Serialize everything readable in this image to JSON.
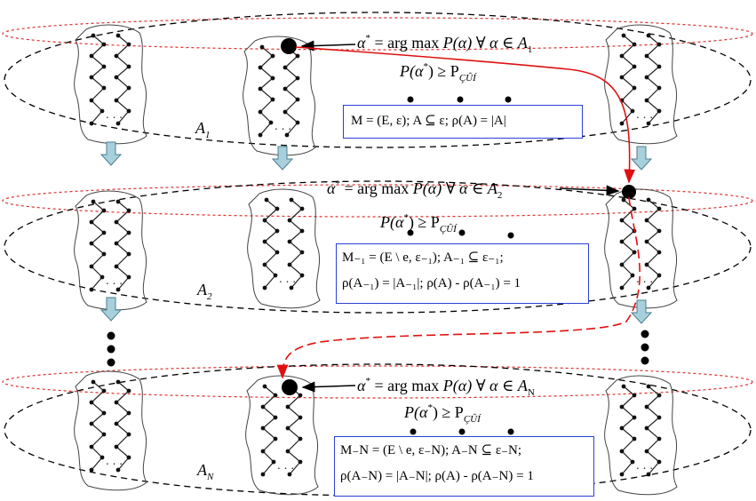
{
  "levels": [
    {
      "label": "A",
      "label_sub": "1",
      "argmax": {
        "lhs": "α",
        "sup": "*",
        "mid": " = arg max ",
        "fn": "P(α) ∀ α ∈ A",
        "sub": "1"
      },
      "threshold": {
        "lhs": "P(α",
        "sup": "*",
        "rest": ") ≥ P",
        "sub": "ÇÛÍ"
      },
      "box_lines": [
        "M = (E, ε); A ⊆ ε; ρ(A) = |A|"
      ]
    },
    {
      "label": "A",
      "label_sub": "2",
      "argmax": {
        "lhs": "α",
        "sup": "*",
        "mid": " = arg max ",
        "fn": "P(α) ∀ α ∈ A",
        "sub": "2"
      },
      "threshold": {
        "lhs": "P(α",
        "sup": "*",
        "rest": ") ≥ P",
        "sub": "ÇÛÍ"
      },
      "box_lines": [
        "M₋₁ = (E \\ e, ε₋₁); A₋₁ ⊆ ε₋₁;",
        "ρ(A₋₁) = |A₋₁|; ρ(A) - ρ(A₋₁) = 1"
      ]
    },
    {
      "label": "A",
      "label_sub": "N",
      "argmax": {
        "lhs": "α",
        "sup": "*",
        "mid": " = arg max ",
        "fn": "P(α) ∀ α ∈ A",
        "sub": "N"
      },
      "threshold": {
        "lhs": "P(α",
        "sup": "*",
        "rest": ") ≥ P",
        "sub": "ÇÛÍ"
      },
      "box_lines": [
        "M₋N = (E \\ e, ε₋N); A₋N ⊆ ε₋N;",
        "ρ(A₋N) = |A₋N|; ρ(A) - ρ(A₋N) = 1"
      ]
    }
  ],
  "colors": {
    "ellipse": "#000000",
    "dotted_ring": "#e03030",
    "arrow_red": "#e01010",
    "box_border": "#2b3fd6",
    "down_arrow_fill": "#a8d0dc",
    "down_arrow_stroke": "#4a7f8f"
  },
  "icons": [
    "graph-node-icon",
    "down-arrow-icon",
    "ellipsis-dots-icon"
  ]
}
